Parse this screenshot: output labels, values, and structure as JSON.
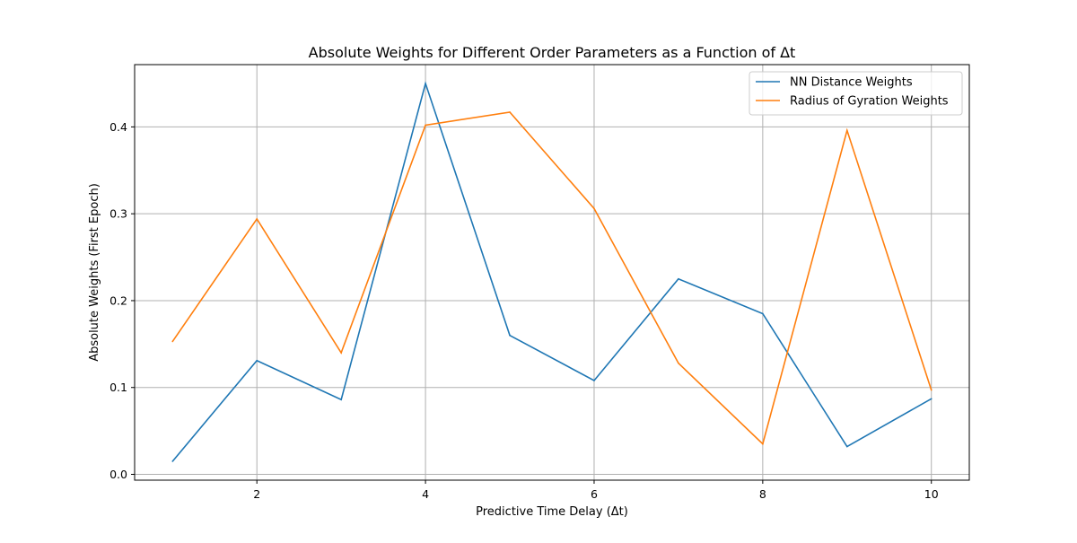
{
  "chart_data": {
    "type": "line",
    "title": "Absolute Weights for Different Order Parameters as a Function of Δt",
    "xlabel": "Predictive Time Delay (Δt)",
    "ylabel": "Absolute Weights (First Epoch)",
    "xlim": [
      0.55,
      10.45
    ],
    "ylim": [
      -0.0067,
      0.4717
    ],
    "x_ticks": [
      2,
      4,
      6,
      8,
      10
    ],
    "x_tick_labels": [
      "2",
      "4",
      "6",
      "8",
      "10"
    ],
    "y_ticks": [
      0.0,
      0.1,
      0.2,
      0.3,
      0.4
    ],
    "y_tick_labels": [
      "0.0",
      "0.1",
      "0.2",
      "0.3",
      "0.4"
    ],
    "grid": true,
    "legend_position": "top-right",
    "x": [
      1,
      2,
      3,
      4,
      5,
      6,
      7,
      8,
      9,
      10
    ],
    "series": [
      {
        "name": "NN Distance Weights",
        "color": "#1f77b4",
        "values": [
          0.015,
          0.131,
          0.086,
          0.45,
          0.16,
          0.108,
          0.225,
          0.185,
          0.032,
          0.087
        ]
      },
      {
        "name": "Radius of Gyration Weights",
        "color": "#ff7f0e",
        "values": [
          0.153,
          0.294,
          0.14,
          0.402,
          0.417,
          0.306,
          0.128,
          0.035,
          0.396,
          0.097
        ]
      }
    ]
  }
}
